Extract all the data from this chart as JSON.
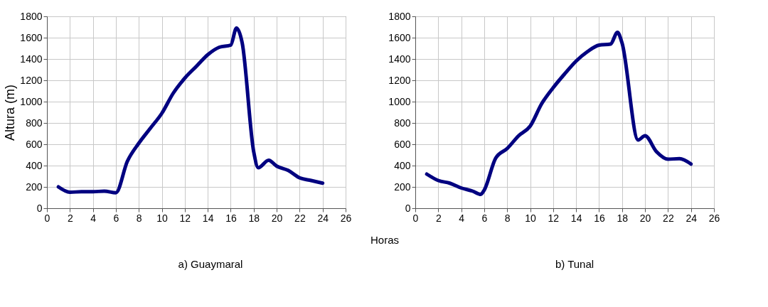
{
  "chart_data": [
    {
      "type": "line",
      "title": "a) Guaymaral",
      "xlabel": "Horas",
      "ylabel": "Altura (m)",
      "x": [
        1,
        2,
        3,
        4,
        5,
        6,
        7,
        8,
        9,
        10,
        11,
        12,
        13,
        14,
        15,
        16,
        16.5,
        17,
        18,
        18.4,
        19.3,
        20,
        21,
        22,
        23,
        24
      ],
      "series": [
        {
          "color": "#000080",
          "values": [
            200,
            150,
            155,
            155,
            160,
            145,
            440,
            610,
            750,
            890,
            1080,
            1220,
            1330,
            1440,
            1510,
            1530,
            1690,
            1550,
            530,
            380,
            450,
            395,
            355,
            285,
            260,
            235
          ]
        }
      ],
      "xlim": [
        0,
        26
      ],
      "xticks": [
        0,
        2,
        4,
        6,
        8,
        10,
        12,
        14,
        16,
        18,
        20,
        22,
        24,
        26
      ],
      "ylim": [
        0,
        1800
      ],
      "yticks": [
        0,
        200,
        400,
        600,
        800,
        1000,
        1200,
        1400,
        1600,
        1800
      ],
      "grid": true,
      "marker": "none",
      "line_style": "solid"
    },
    {
      "type": "line",
      "title": "b) Tunal",
      "x": [
        1,
        2,
        3,
        4,
        5,
        5.7,
        6,
        7,
        8,
        9,
        10,
        11,
        12,
        13,
        14,
        15,
        16,
        17,
        17.6,
        18,
        19.4,
        20,
        21,
        22,
        23,
        24
      ],
      "series": [
        {
          "color": "#000080",
          "values": [
            320,
            260,
            235,
            190,
            160,
            130,
            170,
            470,
            560,
            680,
            770,
            980,
            1130,
            1260,
            1380,
            1470,
            1530,
            1540,
            1650,
            1550,
            640,
            680,
            530,
            460,
            465,
            415
          ]
        }
      ],
      "xlim": [
        0,
        26
      ],
      "xticks": [
        0,
        2,
        4,
        6,
        8,
        10,
        12,
        14,
        16,
        18,
        20,
        22,
        24,
        26
      ],
      "ylim": [
        0,
        1800
      ],
      "yticks": [
        0,
        200,
        400,
        600,
        800,
        1000,
        1200,
        1400,
        1600,
        1800
      ],
      "grid": true,
      "marker": "none",
      "line_style": "solid"
    }
  ]
}
